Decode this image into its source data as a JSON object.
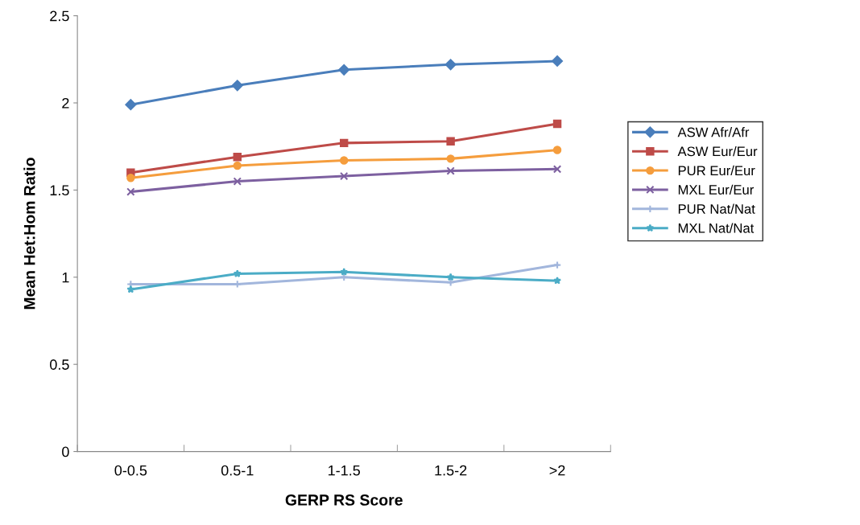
{
  "chart_data": {
    "type": "line",
    "xlabel": "GERP RS Score",
    "ylabel": "Mean Het:Hom Ratio",
    "categories": [
      "0-0.5",
      "0.5-1",
      "1-1.5",
      "1.5-2",
      ">2"
    ],
    "series": [
      {
        "name": "ASW Afr/Afr",
        "color": "#4a7ebb",
        "marker": "diamond",
        "values": [
          1.99,
          2.1,
          2.19,
          2.22,
          2.24
        ]
      },
      {
        "name": "ASW Eur/Eur",
        "color": "#be4b48",
        "marker": "square",
        "values": [
          1.6,
          1.69,
          1.77,
          1.78,
          1.88
        ]
      },
      {
        "name": "PUR Eur/Eur",
        "color": "#f59d3d",
        "marker": "circle",
        "values": [
          1.57,
          1.64,
          1.67,
          1.68,
          1.73
        ]
      },
      {
        "name": "MXL Eur/Eur",
        "color": "#7d60a0",
        "marker": "cross",
        "values": [
          1.49,
          1.55,
          1.58,
          1.61,
          1.62
        ]
      },
      {
        "name": "PUR Nat/Nat",
        "color": "#a2b6dc",
        "marker": "plus",
        "values": [
          0.96,
          0.96,
          1.0,
          0.97,
          1.07
        ]
      },
      {
        "name": "MXL Nat/Nat",
        "color": "#4bacc6",
        "marker": "star",
        "values": [
          0.93,
          1.02,
          1.03,
          1.0,
          0.98
        ]
      }
    ],
    "ylim": [
      0,
      2.5
    ],
    "yticks": [
      0,
      {
        "value": 0.5,
        "label": "0.5"
      },
      1,
      {
        "value": 1.5,
        "label": "1.5"
      },
      2,
      {
        "value": 2.5,
        "label": "2.5"
      }
    ],
    "grid": false,
    "legend": "right",
    "line_style": "solid"
  }
}
